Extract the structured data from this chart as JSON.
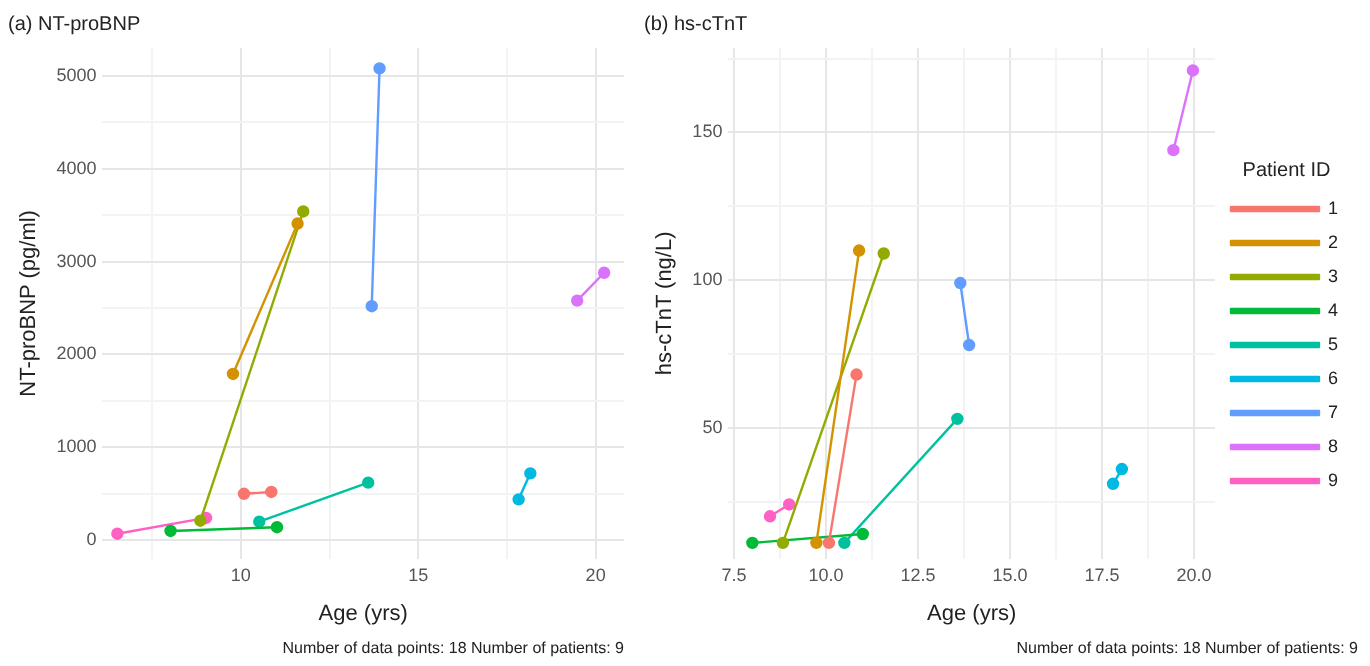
{
  "chart_data": [
    {
      "type": "line",
      "title": "(a) NT-proBNP",
      "xlabel": "Age (yrs)",
      "ylabel": "NT-proBNP (pg/ml)",
      "annotations": [
        "Number of data points: 18 Number of patients: 9"
      ],
      "xlim": [
        6.1,
        20.8
      ],
      "ylim": [
        -200,
        5300
      ],
      "xticks": [
        {
          "value": 7.5,
          "label": null
        },
        10,
        {
          "value": 12.5,
          "label": null
        },
        15,
        {
          "value": 17.5,
          "label": null
        },
        20
      ],
      "yticks": [
        0,
        {
          "value": 500,
          "label": null
        },
        1000,
        {
          "value": 1500,
          "label": null
        },
        2000,
        {
          "value": 2500,
          "label": null
        },
        3000,
        {
          "value": 3500,
          "label": null
        },
        4000,
        {
          "value": 4500,
          "label": null
        },
        5000
      ],
      "grid": true,
      "legend": false,
      "marker": "circle",
      "line_style": "solid",
      "series": [
        {
          "color": "#F8766D",
          "x": [
            10.09,
            10.86
          ],
          "values": [
            500,
            520
          ]
        },
        {
          "color": "#D39200",
          "x": [
            9.78,
            11.6
          ],
          "values": [
            1790,
            3410
          ]
        },
        {
          "color": "#93AA00",
          "x": [
            8.86,
            11.76
          ],
          "values": [
            210,
            3540
          ]
        },
        {
          "color": "#00BA38",
          "x": [
            8.02,
            11.02
          ],
          "values": [
            100,
            140
          ]
        },
        {
          "color": "#00C19F",
          "x": [
            10.52,
            13.59
          ],
          "values": [
            200,
            620
          ]
        },
        {
          "color": "#00B9E3",
          "x": [
            17.83,
            18.16
          ],
          "values": [
            440,
            720
          ]
        },
        {
          "color": "#619CFF",
          "x": [
            13.69,
            13.91
          ],
          "values": [
            2520,
            5080
          ]
        },
        {
          "color": "#DB72FB",
          "x": [
            19.48,
            20.24
          ],
          "values": [
            2580,
            2880
          ]
        },
        {
          "color": "#FF61C3",
          "x": [
            6.52,
            9.02
          ],
          "values": [
            70,
            240
          ]
        }
      ]
    },
    {
      "type": "line",
      "title": "(b) hs-cTnT",
      "xlabel": "Age (yrs)",
      "ylabel": "hs-cTnT (ng/L)",
      "legend_title": "Patient ID",
      "annotations": [
        "Number of data points: 18 Number of patients: 9"
      ],
      "xlim": [
        7.35,
        20.57
      ],
      "ylim": [
        5.6,
        178.6
      ],
      "xticks": [
        7.5,
        {
          "value": 8.75,
          "label": null
        },
        "10.0",
        {
          "value": 11.25,
          "label": null
        },
        12.5,
        {
          "value": 13.75,
          "label": null
        },
        "15.0",
        {
          "value": 16.25,
          "label": null
        },
        17.5,
        {
          "value": 18.75,
          "label": null
        },
        "20.0"
      ],
      "yticks": [
        {
          "value": 25,
          "label": null
        },
        50,
        {
          "value": 75,
          "label": null
        },
        100,
        {
          "value": 125,
          "label": null
        },
        150,
        {
          "value": 175,
          "label": null
        }
      ],
      "grid": true,
      "legend": "right",
      "marker": "circle",
      "line_style": "solid",
      "series": [
        {
          "name": "1",
          "color": "#F8766D",
          "x": [
            10.08,
            10.83
          ],
          "values": [
            11,
            68
          ]
        },
        {
          "name": "2",
          "color": "#D39200",
          "x": [
            9.74,
            10.9
          ],
          "values": [
            11,
            110
          ]
        },
        {
          "name": "3",
          "color": "#93AA00",
          "x": [
            8.83,
            11.57
          ],
          "values": [
            11,
            109
          ]
        },
        {
          "name": "4",
          "color": "#00BA38",
          "x": [
            8.0,
            11.0
          ],
          "values": [
            11,
            14
          ]
        },
        {
          "name": "5",
          "color": "#00C19F",
          "x": [
            10.5,
            13.57
          ],
          "values": [
            11,
            53
          ]
        },
        {
          "name": "6",
          "color": "#00B9E3",
          "x": [
            17.8,
            18.04
          ],
          "values": [
            31,
            36
          ]
        },
        {
          "name": "7",
          "color": "#619CFF",
          "x": [
            13.65,
            13.89
          ],
          "values": [
            99,
            78
          ]
        },
        {
          "name": "8",
          "color": "#DB72FB",
          "x": [
            19.44,
            19.97
          ],
          "values": [
            144,
            171
          ]
        },
        {
          "name": "9",
          "color": "#FF61C3",
          "x": [
            8.48,
            9.0
          ],
          "values": [
            20,
            24
          ]
        }
      ]
    }
  ]
}
